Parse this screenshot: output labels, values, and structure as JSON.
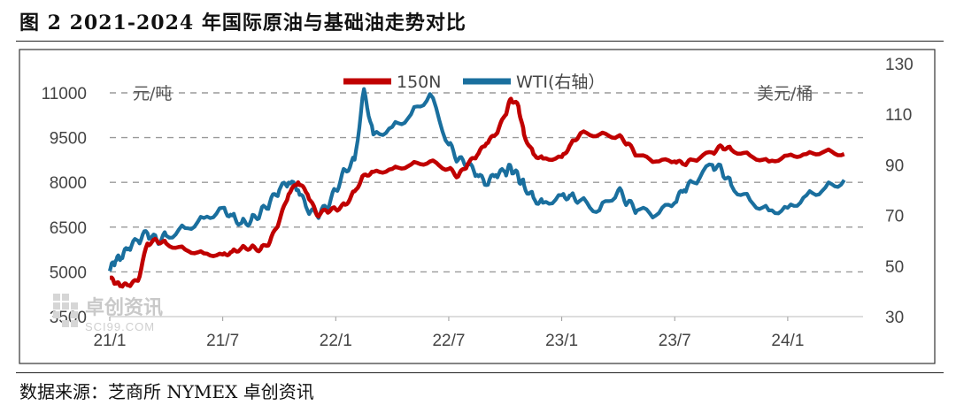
{
  "figure": {
    "title": "图 2   2021-2024 年国际原油与基础油走势对比",
    "source": "数据来源：芝商所 NYMEX 卓创资讯"
  },
  "watermark": {
    "text": "卓创资讯",
    "subtext": "SCI99.COM"
  },
  "chart_data": {
    "type": "line",
    "left_unit": "元/吨",
    "right_unit": "美元/桶",
    "x_tick_labels": [
      "21/1",
      "21/7",
      "22/1",
      "22/7",
      "23/1",
      "23/7",
      "24/1"
    ],
    "y_left": {
      "min": 3500,
      "max": 11000,
      "ticks": [
        3500,
        5000,
        6500,
        8000,
        9500,
        11000
      ]
    },
    "y_right": {
      "min": 30,
      "max": 130,
      "ticks": [
        30,
        50,
        70,
        90,
        110,
        130
      ]
    },
    "grid": true,
    "legend_position": "top",
    "series": [
      {
        "name": "150N",
        "axis": "left",
        "color": "#c00000",
        "points": [
          [
            "21/1",
            4800
          ],
          [
            "21/1.3",
            4620
          ],
          [
            "21/1.6",
            4530
          ],
          [
            "21/2",
            4550
          ],
          [
            "21/2.5",
            4700
          ],
          [
            "21/3",
            5950
          ],
          [
            "21/3.5",
            6050
          ],
          [
            "21/4",
            5950
          ],
          [
            "21/5",
            5750
          ],
          [
            "21/6",
            5620
          ],
          [
            "21/7",
            5580
          ],
          [
            "21/7.5",
            5680
          ],
          [
            "21/8",
            5800
          ],
          [
            "21/8.5",
            5820
          ],
          [
            "21/9",
            5750
          ],
          [
            "21/9.5",
            6000
          ],
          [
            "21/10",
            6700
          ],
          [
            "21/10.5",
            7600
          ],
          [
            "21/11",
            8000
          ],
          [
            "21/11.5",
            7600
          ],
          [
            "21/12",
            6900
          ],
          [
            "21/12.5",
            7050
          ],
          [
            "22/1",
            7100
          ],
          [
            "22/1.5",
            7250
          ],
          [
            "22/2",
            7700
          ],
          [
            "22/2.5",
            8250
          ],
          [
            "22/3",
            8350
          ],
          [
            "22/4",
            8450
          ],
          [
            "22/5",
            8600
          ],
          [
            "22/6",
            8700
          ],
          [
            "22/7",
            8450
          ],
          [
            "22/7.5",
            8200
          ],
          [
            "22/8",
            8600
          ],
          [
            "22/8.5",
            8900
          ],
          [
            "22/9",
            9300
          ],
          [
            "22/9.5",
            9600
          ],
          [
            "22/10",
            10250
          ],
          [
            "22/10.3",
            10800
          ],
          [
            "22/10.7",
            10550
          ],
          [
            "22/11",
            9600
          ],
          [
            "22/11.5",
            8950
          ],
          [
            "22/12",
            8800
          ],
          [
            "23/1",
            8850
          ],
          [
            "23/1.5",
            9300
          ],
          [
            "23/2",
            9650
          ],
          [
            "23/3",
            9600
          ],
          [
            "23/4",
            9550
          ],
          [
            "23/4.5",
            9300
          ],
          [
            "23/5",
            8900
          ],
          [
            "23/6",
            8700
          ],
          [
            "23/7",
            8700
          ],
          [
            "23/7.5",
            8600
          ],
          [
            "23/8",
            8750
          ],
          [
            "23/9",
            9000
          ],
          [
            "23/9.5",
            9200
          ],
          [
            "23/10",
            9100
          ],
          [
            "23/11",
            8900
          ],
          [
            "23/12",
            8700
          ],
          [
            "24/1",
            8900
          ],
          [
            "24/2",
            8950
          ],
          [
            "24/3",
            9050
          ],
          [
            "24/4",
            8950
          ]
        ]
      },
      {
        "name": "WTI(右轴）",
        "axis": "right",
        "color": "#1a6f9e",
        "points": [
          [
            "21/1",
            48
          ],
          [
            "21/1.3",
            52
          ],
          [
            "21/1.6",
            53
          ],
          [
            "21/2",
            57
          ],
          [
            "21/2.5",
            60
          ],
          [
            "21/3",
            63
          ],
          [
            "21/3.5",
            60
          ],
          [
            "21/4",
            62
          ],
          [
            "21/5",
            65
          ],
          [
            "21/6",
            69
          ],
          [
            "21/7",
            73
          ],
          [
            "21/7.5",
            70
          ],
          [
            "21/8",
            67
          ],
          [
            "21/8.5",
            68
          ],
          [
            "21/9",
            71
          ],
          [
            "21/9.5",
            75
          ],
          [
            "21/10",
            80
          ],
          [
            "21/10.5",
            83
          ],
          [
            "21/11",
            80
          ],
          [
            "21/11.5",
            72
          ],
          [
            "21/12",
            70
          ],
          [
            "21/12.5",
            73
          ],
          [
            "22/1",
            80
          ],
          [
            "22/1.5",
            88
          ],
          [
            "22/2",
            92
          ],
          [
            "22/2.5",
            120
          ],
          [
            "22/3",
            102
          ],
          [
            "22/4",
            105
          ],
          [
            "22/5",
            110
          ],
          [
            "22/6",
            118
          ],
          [
            "22/7",
            98
          ],
          [
            "22/7.5",
            92
          ],
          [
            "22/8",
            90
          ],
          [
            "22/8.5",
            86
          ],
          [
            "22/9",
            82
          ],
          [
            "22/9.5",
            86
          ],
          [
            "22/10",
            87
          ],
          [
            "22/10.3",
            89
          ],
          [
            "22/10.7",
            85
          ],
          [
            "22/11",
            82
          ],
          [
            "22/11.5",
            77
          ],
          [
            "22/12",
            75
          ],
          [
            "23/1",
            78
          ],
          [
            "23/1.5",
            78
          ],
          [
            "23/2",
            76
          ],
          [
            "23/3",
            72
          ],
          [
            "23/4",
            80
          ],
          [
            "23/4.5",
            75
          ],
          [
            "23/5",
            72
          ],
          [
            "23/6",
            70
          ],
          [
            "23/7",
            75
          ],
          [
            "23/7.5",
            80
          ],
          [
            "23/8",
            83
          ],
          [
            "23/9",
            90
          ],
          [
            "23/9.5",
            88
          ],
          [
            "23/10",
            82
          ],
          [
            "23/11",
            76
          ],
          [
            "23/12",
            72
          ],
          [
            "24/1",
            73
          ],
          [
            "24/2",
            78
          ],
          [
            "24/3",
            81
          ],
          [
            "24/4",
            84
          ]
        ]
      }
    ]
  }
}
